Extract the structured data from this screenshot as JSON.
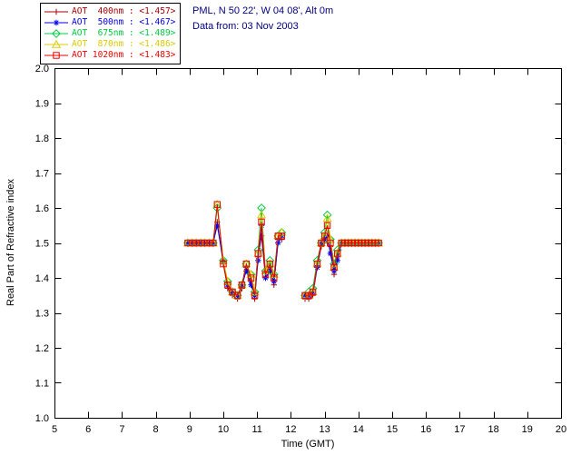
{
  "header": {
    "line1": "PML, N 50 22', W 04 08', Alt 0m",
    "line2": "Data from: 03 Nov 2003",
    "color": "#000080"
  },
  "legend": {
    "items": [
      "AOT  400nm : <1.457>",
      "AOT  500nm : <1.467>",
      "AOT  675nm : <1.489>",
      "AOT  870nm : <1.486>",
      "AOT 1020nm : <1.483>"
    ]
  },
  "chart_data": {
    "type": "line",
    "title": "",
    "xlabel": "Time (GMT)",
    "ylabel": "Real Part of Refractive index",
    "xlim": [
      5,
      20
    ],
    "ylim": [
      1.0,
      2.0
    ],
    "xticks": [
      5,
      6,
      7,
      8,
      9,
      10,
      11,
      12,
      13,
      14,
      15,
      16,
      17,
      18,
      19,
      20
    ],
    "yticks": [
      1.0,
      1.1,
      1.2,
      1.3,
      1.4,
      1.5,
      1.6,
      1.7,
      1.8,
      1.9,
      2.0
    ],
    "grid": false,
    "legend_position": "outside-top-left",
    "axis_color": "#000000",
    "background_color": "#ffffff",
    "x": [
      8.95,
      9.08,
      9.2,
      9.33,
      9.45,
      9.58,
      9.7,
      9.82,
      10.0,
      10.13,
      10.27,
      10.42,
      10.55,
      10.68,
      10.82,
      10.93,
      11.03,
      11.13,
      11.25,
      11.38,
      11.5,
      11.62,
      11.73,
      12.42,
      12.53,
      12.65,
      12.78,
      12.9,
      13.0,
      13.08,
      13.17,
      13.28,
      13.38,
      13.5,
      13.6,
      13.7,
      13.8,
      13.9,
      14.0,
      14.1,
      14.2,
      14.3,
      14.4,
      14.5,
      14.6
    ],
    "series": [
      {
        "name": "AOT 400nm",
        "color": "#aa0000",
        "marker": "plus",
        "values": [
          1.5,
          1.5,
          1.5,
          1.5,
          1.5,
          1.5,
          1.5,
          1.56,
          1.44,
          1.37,
          1.35,
          1.34,
          1.37,
          1.43,
          1.39,
          1.34,
          1.46,
          1.52,
          1.4,
          1.43,
          1.38,
          1.51,
          1.51,
          1.34,
          1.34,
          1.35,
          1.43,
          1.49,
          1.51,
          1.5,
          1.49,
          1.41,
          1.46,
          1.5,
          1.5,
          1.5,
          1.5,
          1.5,
          1.5,
          1.5,
          1.5,
          1.5,
          1.5,
          1.5,
          1.5
        ]
      },
      {
        "name": "AOT 500nm",
        "color": "#0000ee",
        "marker": "asterisk",
        "values": [
          1.5,
          1.5,
          1.5,
          1.5,
          1.5,
          1.5,
          1.5,
          1.55,
          1.45,
          1.38,
          1.36,
          1.35,
          1.38,
          1.42,
          1.38,
          1.35,
          1.45,
          1.55,
          1.4,
          1.42,
          1.39,
          1.5,
          1.52,
          1.35,
          1.35,
          1.36,
          1.43,
          1.5,
          1.51,
          1.52,
          1.47,
          1.42,
          1.45,
          1.5,
          1.5,
          1.5,
          1.5,
          1.5,
          1.5,
          1.5,
          1.5,
          1.5,
          1.5,
          1.5,
          1.5
        ]
      },
      {
        "name": "AOT 675nm",
        "color": "#00cc44",
        "marker": "diamond",
        "values": [
          1.5,
          1.5,
          1.5,
          1.5,
          1.5,
          1.5,
          1.5,
          1.6,
          1.45,
          1.39,
          1.36,
          1.35,
          1.38,
          1.44,
          1.41,
          1.36,
          1.48,
          1.6,
          1.42,
          1.45,
          1.41,
          1.52,
          1.53,
          1.35,
          1.36,
          1.37,
          1.45,
          1.5,
          1.53,
          1.58,
          1.51,
          1.44,
          1.48,
          1.5,
          1.5,
          1.5,
          1.5,
          1.5,
          1.5,
          1.5,
          1.5,
          1.5,
          1.5,
          1.5,
          1.5
        ]
      },
      {
        "name": "AOT 870nm",
        "color": "#ddcc00",
        "marker": "triangle",
        "values": [
          1.5,
          1.5,
          1.5,
          1.5,
          1.5,
          1.5,
          1.5,
          1.61,
          1.45,
          1.39,
          1.36,
          1.35,
          1.38,
          1.44,
          1.41,
          1.36,
          1.47,
          1.58,
          1.42,
          1.44,
          1.41,
          1.52,
          1.53,
          1.35,
          1.35,
          1.36,
          1.44,
          1.5,
          1.52,
          1.57,
          1.51,
          1.43,
          1.47,
          1.5,
          1.5,
          1.5,
          1.5,
          1.5,
          1.5,
          1.5,
          1.5,
          1.5,
          1.5,
          1.5,
          1.5
        ]
      },
      {
        "name": "AOT 1020nm",
        "color": "#ee0000",
        "marker": "square",
        "values": [
          1.5,
          1.5,
          1.5,
          1.5,
          1.5,
          1.5,
          1.5,
          1.61,
          1.44,
          1.38,
          1.36,
          1.35,
          1.38,
          1.44,
          1.4,
          1.35,
          1.47,
          1.56,
          1.41,
          1.44,
          1.4,
          1.52,
          1.52,
          1.35,
          1.35,
          1.36,
          1.44,
          1.5,
          1.52,
          1.55,
          1.5,
          1.43,
          1.47,
          1.5,
          1.5,
          1.5,
          1.5,
          1.5,
          1.5,
          1.5,
          1.5,
          1.5,
          1.5,
          1.5,
          1.5
        ]
      }
    ]
  }
}
